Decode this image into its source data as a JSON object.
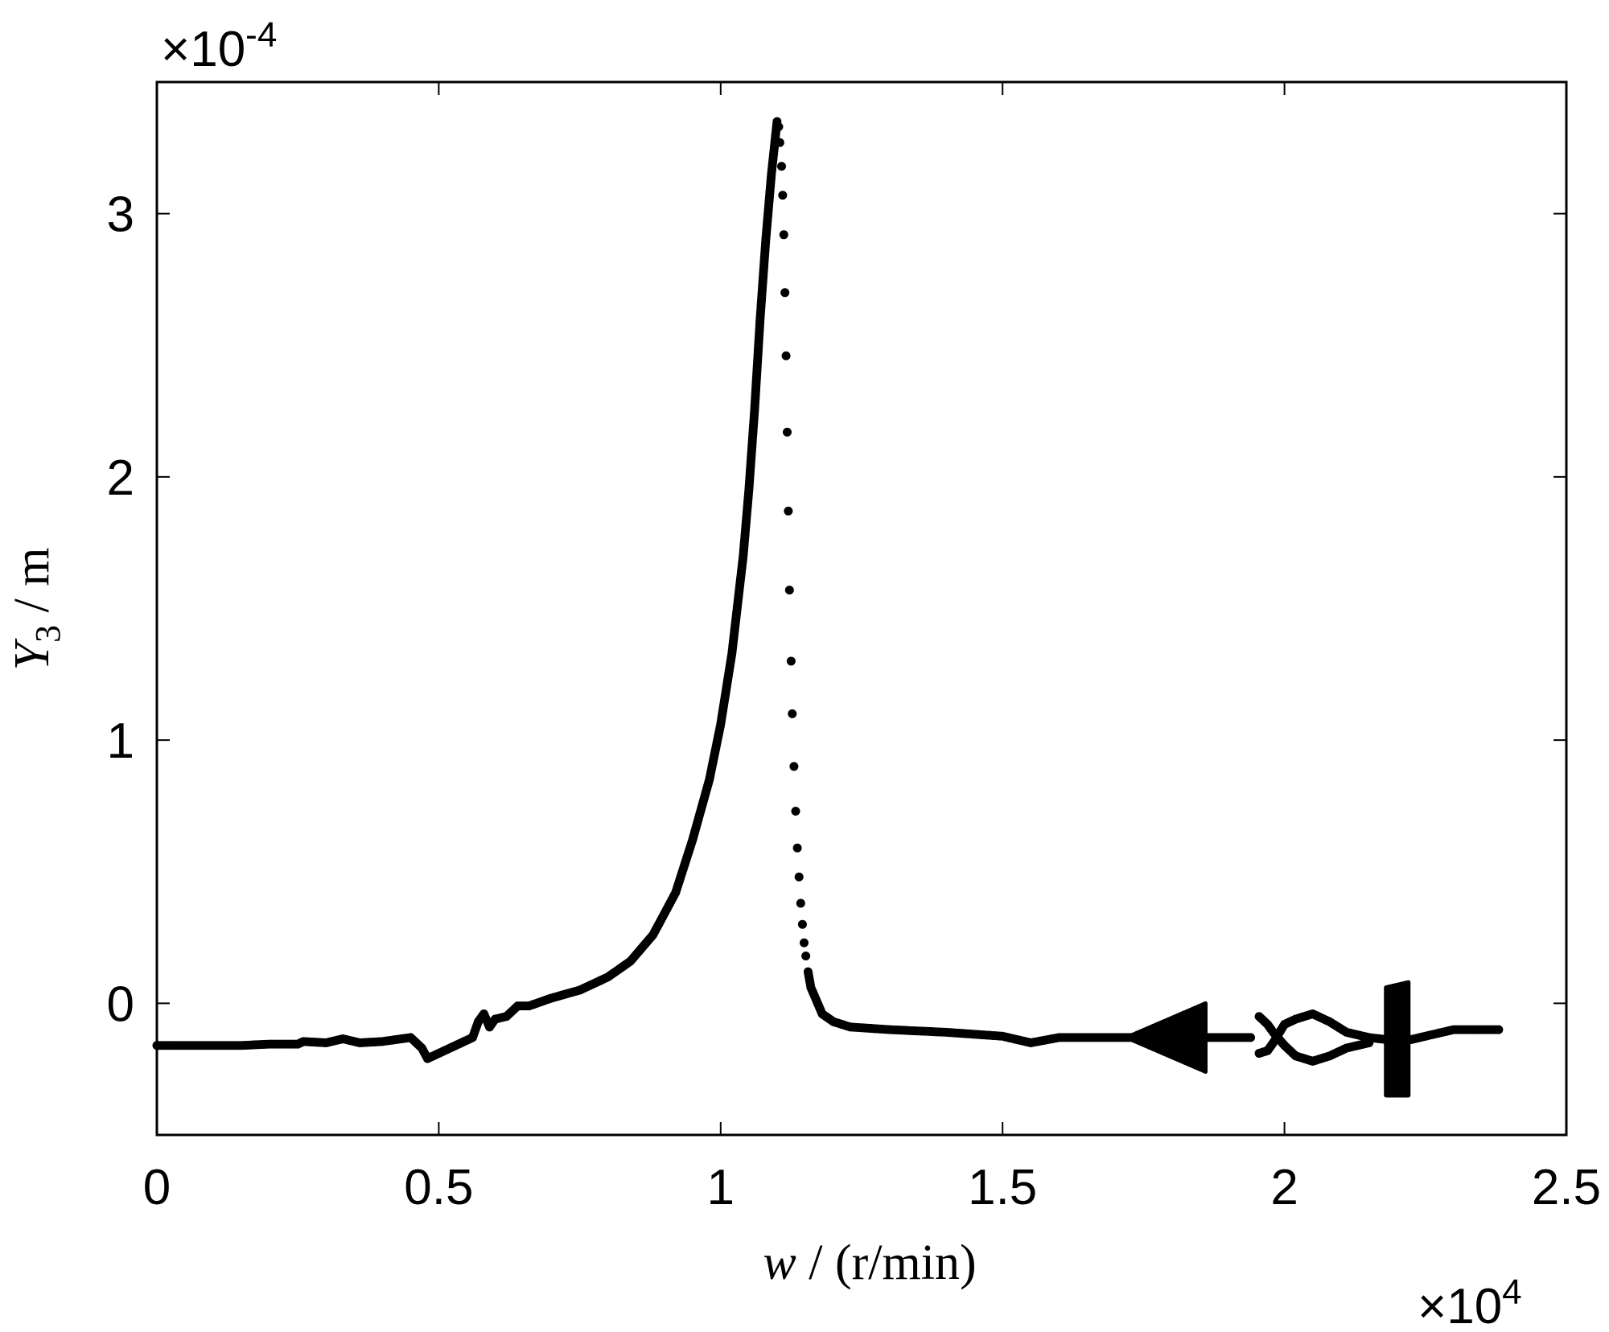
{
  "chart_data": {
    "type": "scatter",
    "title": "",
    "xlabel": {
      "var": "w",
      "unit": " / (r/min)"
    },
    "ylabel": {
      "var": "Y",
      "sub": "3",
      "unit": " / m"
    },
    "x_multiplier": {
      "base": "×10",
      "exp": "4"
    },
    "y_multiplier": {
      "base": "×10",
      "exp": "-4"
    },
    "xlim": [
      0,
      2.5
    ],
    "ylim": [
      -0.5,
      3.5
    ],
    "xticks": [
      0,
      0.5,
      1,
      1.5,
      2,
      2.5
    ],
    "xtick_labels": [
      "0",
      "0.5",
      "1",
      "1.5",
      "2",
      "2.5"
    ],
    "yticks": [
      0,
      1,
      2,
      3
    ],
    "ytick_labels": [
      "0",
      "1",
      "2",
      "3"
    ],
    "grid": false,
    "legend": "none",
    "marker_color": "#000000",
    "series": [
      {
        "style": "dense",
        "points": [
          [
            0.0,
            -0.16
          ],
          [
            0.05,
            -0.16
          ],
          [
            0.1,
            -0.16
          ],
          [
            0.15,
            -0.16
          ],
          [
            0.2,
            -0.155
          ],
          [
            0.25,
            -0.155
          ],
          [
            0.26,
            -0.145
          ],
          [
            0.3,
            -0.15
          ],
          [
            0.33,
            -0.135
          ],
          [
            0.36,
            -0.15
          ],
          [
            0.4,
            -0.145
          ],
          [
            0.45,
            -0.13
          ],
          [
            0.47,
            -0.17
          ],
          [
            0.48,
            -0.21
          ],
          [
            0.5,
            -0.19
          ],
          [
            0.52,
            -0.17
          ],
          [
            0.54,
            -0.15
          ],
          [
            0.56,
            -0.13
          ],
          [
            0.57,
            -0.07
          ],
          [
            0.58,
            -0.04
          ],
          [
            0.59,
            -0.09
          ],
          [
            0.6,
            -0.06
          ],
          [
            0.62,
            -0.05
          ],
          [
            0.64,
            -0.01
          ],
          [
            0.66,
            -0.01
          ],
          [
            0.7,
            0.02
          ],
          [
            0.75,
            0.05
          ],
          [
            0.8,
            0.1
          ],
          [
            0.84,
            0.16
          ],
          [
            0.88,
            0.26
          ],
          [
            0.92,
            0.42
          ],
          [
            0.95,
            0.62
          ],
          [
            0.98,
            0.85
          ],
          [
            1.0,
            1.06
          ],
          [
            1.02,
            1.33
          ],
          [
            1.04,
            1.7
          ],
          [
            1.05,
            1.95
          ],
          [
            1.06,
            2.25
          ],
          [
            1.07,
            2.6
          ],
          [
            1.08,
            2.9
          ],
          [
            1.09,
            3.15
          ],
          [
            1.1,
            3.35
          ]
        ]
      },
      {
        "style": "sparse",
        "points": [
          [
            1.103,
            3.33
          ],
          [
            1.105,
            3.27
          ],
          [
            1.108,
            3.18
          ],
          [
            1.11,
            3.07
          ],
          [
            1.112,
            2.92
          ],
          [
            1.114,
            2.7
          ],
          [
            1.116,
            2.46
          ],
          [
            1.118,
            2.17
          ],
          [
            1.12,
            1.87
          ],
          [
            1.122,
            1.57
          ],
          [
            1.125,
            1.3
          ],
          [
            1.127,
            1.1
          ],
          [
            1.13,
            0.9
          ],
          [
            1.133,
            0.73
          ],
          [
            1.136,
            0.59
          ],
          [
            1.139,
            0.48
          ],
          [
            1.142,
            0.38
          ],
          [
            1.145,
            0.3
          ],
          [
            1.148,
            0.23
          ],
          [
            1.151,
            0.18
          ]
        ]
      },
      {
        "style": "dense",
        "points": [
          [
            1.155,
            0.12
          ],
          [
            1.16,
            0.06
          ],
          [
            1.17,
            0.01
          ],
          [
            1.18,
            -0.04
          ],
          [
            1.2,
            -0.07
          ],
          [
            1.23,
            -0.09
          ],
          [
            1.3,
            -0.1
          ],
          [
            1.4,
            -0.11
          ],
          [
            1.5,
            -0.125
          ],
          [
            1.55,
            -0.15
          ],
          [
            1.6,
            -0.13
          ],
          [
            1.7,
            -0.13
          ],
          [
            1.75,
            -0.13
          ],
          [
            1.8,
            -0.13
          ],
          [
            1.86,
            -0.13
          ],
          [
            1.9,
            -0.13
          ],
          [
            1.94,
            -0.13
          ]
        ]
      },
      {
        "style": "band",
        "x": [
          1.73,
          1.86
        ],
        "upper": [
          -0.12,
          0.0
        ],
        "lower": [
          -0.14,
          -0.26
        ]
      },
      {
        "style": "dense",
        "points": [
          [
            1.955,
            -0.19
          ],
          [
            1.97,
            -0.18
          ],
          [
            1.98,
            -0.15
          ],
          [
            2.0,
            -0.08
          ],
          [
            2.02,
            -0.06
          ],
          [
            2.05,
            -0.04
          ],
          [
            2.08,
            -0.07
          ],
          [
            2.11,
            -0.11
          ],
          [
            2.15,
            -0.13
          ],
          [
            2.19,
            -0.14
          ],
          [
            2.22,
            -0.14
          ],
          [
            2.3,
            -0.1
          ],
          [
            2.38,
            -0.1
          ]
        ]
      },
      {
        "style": "dense",
        "points": [
          [
            1.955,
            -0.05
          ],
          [
            1.97,
            -0.08
          ],
          [
            1.98,
            -0.11
          ],
          [
            2.0,
            -0.16
          ],
          [
            2.02,
            -0.2
          ],
          [
            2.05,
            -0.22
          ],
          [
            2.08,
            -0.2
          ],
          [
            2.11,
            -0.17
          ],
          [
            2.15,
            -0.15
          ]
        ]
      },
      {
        "style": "band",
        "x": [
          2.18,
          2.22
        ],
        "upper": [
          0.06,
          0.08
        ],
        "lower": [
          -0.35,
          -0.35
        ]
      }
    ]
  }
}
